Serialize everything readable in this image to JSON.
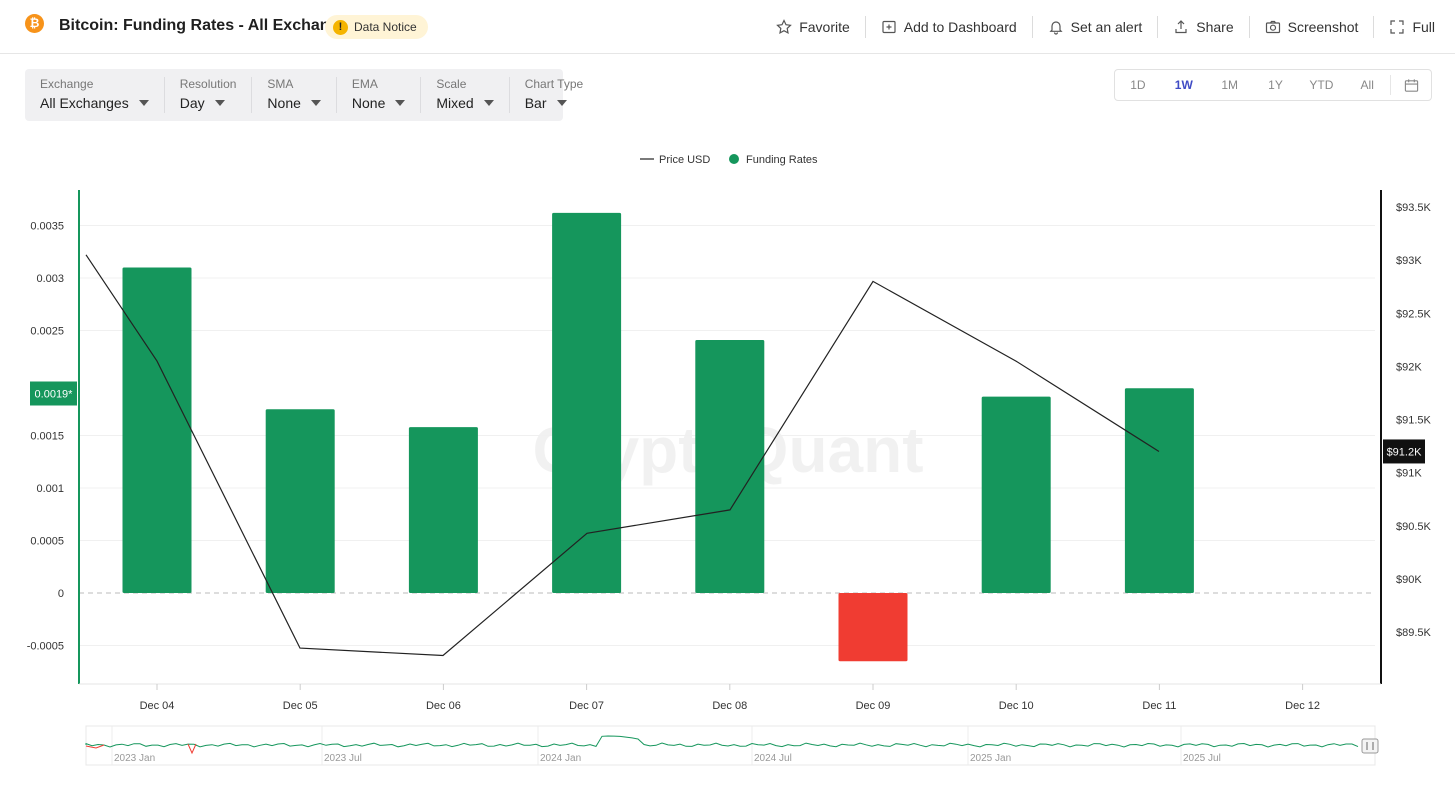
{
  "header": {
    "logo_glyph": "₿",
    "title": "Bitcoin: Funding Rates - All Exchanges",
    "notice": "Data Notice",
    "actions": [
      {
        "label": "Favorite",
        "icon": "star-icon"
      },
      {
        "label": "Add to Dashboard",
        "icon": "add-dashboard-icon"
      },
      {
        "label": "Set an alert",
        "icon": "bell-icon"
      },
      {
        "label": "Share",
        "icon": "share-icon"
      },
      {
        "label": "Screenshot",
        "icon": "camera-icon"
      },
      {
        "label": "Full",
        "icon": "fullscreen-icon"
      }
    ]
  },
  "controls": [
    {
      "label": "Exchange",
      "value": "All Exchanges"
    },
    {
      "label": "Resolution",
      "value": "Day"
    },
    {
      "label": "SMA",
      "value": "None"
    },
    {
      "label": "EMA",
      "value": "None"
    },
    {
      "label": "Scale",
      "value": "Mixed"
    },
    {
      "label": "Chart Type",
      "value": "Bar"
    }
  ],
  "ranges": {
    "options": [
      "1D",
      "1W",
      "1M",
      "1Y",
      "YTD",
      "All"
    ],
    "selected": "1W"
  },
  "watermark": "CryptoQuant",
  "colors": {
    "positive": "#15965c",
    "negative": "#f03c32",
    "price": "#222222",
    "axis_left": "#15965c",
    "axis_right": "#111111"
  },
  "chart_data": {
    "type": "bar",
    "legend": [
      "Price USD",
      "Funding Rates"
    ],
    "categories": [
      "Dec 04",
      "Dec 05",
      "Dec 06",
      "Dec 07",
      "Dec 08",
      "Dec 09",
      "Dec 10",
      "Dec 11",
      "Dec 12"
    ],
    "series": [
      {
        "name": "Funding Rates",
        "type": "bar",
        "axis": "left",
        "values": [
          0.0031,
          0.00175,
          0.00158,
          0.00362,
          0.00241,
          -0.00065,
          0.00187,
          0.00195,
          null
        ]
      },
      {
        "name": "Price USD",
        "type": "line",
        "axis": "right",
        "values": [
          93050,
          92050,
          89350,
          89280,
          90430,
          90650,
          92800,
          92050,
          91200
        ]
      }
    ],
    "left_axis": {
      "ticks": [
        "-0.0005",
        "0",
        "0.0005",
        "0.001",
        "0.0015",
        "0.0025",
        "0.003",
        "0.0035"
      ],
      "tick_values": [
        -0.0005,
        0,
        0.0005,
        0.001,
        0.0015,
        0.0025,
        0.003,
        0.0035
      ],
      "ylim": [
        -0.00087,
        0.00395
      ],
      "current_label": "0.0019*",
      "current_value": 0.0019
    },
    "right_axis": {
      "ticks": [
        "$89.5K",
        "$90K",
        "$90.5K",
        "$91K",
        "$91.5K",
        "$92K",
        "$92.5K",
        "$93K",
        "$93.5K"
      ],
      "tick_values": [
        89500,
        90000,
        90500,
        91000,
        91500,
        92000,
        92500,
        93000,
        93500
      ],
      "current_label": "$91.2K",
      "current_value": 91200
    },
    "navigator_labels": [
      "2023 Jan",
      "2023 Jul",
      "2024 Jan",
      "2024 Jul",
      "2025 Jan",
      "2025 Jul"
    ]
  }
}
